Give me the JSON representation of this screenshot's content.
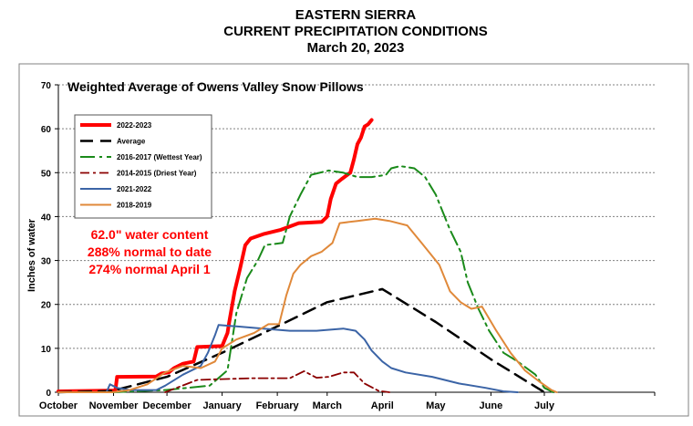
{
  "header": {
    "line1": "EASTERN SIERRA",
    "line2": "CURRENT PRECIPITATION CONDITIONS",
    "line3": "March 20, 2023"
  },
  "annotation": {
    "line1": "62.0\" water content",
    "line2": "288% normal to date",
    "line3": "274% normal April 1"
  },
  "chart_data": {
    "type": "line",
    "title": "Weighted Average of Owens Valley Snow Pillows",
    "ylabel": "Inches of water",
    "xlabel": "",
    "ylim": [
      0,
      70
    ],
    "yticks": [
      0,
      10,
      20,
      30,
      40,
      50,
      60,
      70
    ],
    "xlim": [
      0,
      335
    ],
    "x_units": "days since Oct 1",
    "month_ticks": [
      {
        "label": "October",
        "x": 0
      },
      {
        "label": "November",
        "x": 31
      },
      {
        "label": "December",
        "x": 61
      },
      {
        "label": "January",
        "x": 92
      },
      {
        "label": "February",
        "x": 123
      },
      {
        "label": "March",
        "x": 151
      },
      {
        "label": "April",
        "x": 182
      },
      {
        "label": "May",
        "x": 212
      },
      {
        "label": "June",
        "x": 243
      },
      {
        "label": "July",
        "x": 273
      }
    ],
    "grid": true,
    "legend_position": "top-left",
    "series": [
      {
        "name": "2022-2023",
        "color": "#ff0000",
        "dash": "",
        "width": 4,
        "points": [
          [
            0,
            0.2
          ],
          [
            32,
            0.4
          ],
          [
            33,
            3.5
          ],
          [
            55,
            3.6
          ],
          [
            58,
            4.3
          ],
          [
            62,
            4.5
          ],
          [
            65,
            5.5
          ],
          [
            70,
            6.5
          ],
          [
            76,
            7.0
          ],
          [
            78,
            10.3
          ],
          [
            92,
            10.5
          ],
          [
            95,
            13.5
          ],
          [
            96,
            16
          ],
          [
            99,
            23
          ],
          [
            102,
            28
          ],
          [
            105,
            33.5
          ],
          [
            108,
            35
          ],
          [
            115,
            36
          ],
          [
            125,
            37
          ],
          [
            135,
            38.5
          ],
          [
            148,
            38.8
          ],
          [
            151,
            40
          ],
          [
            153,
            44
          ],
          [
            156,
            47.5
          ],
          [
            159,
            48.5
          ],
          [
            164,
            50
          ],
          [
            166,
            53
          ],
          [
            168,
            56.5
          ],
          [
            170,
            58
          ],
          [
            172,
            60.5
          ],
          [
            174,
            61
          ],
          [
            176,
            62
          ]
        ]
      },
      {
        "name": "Average",
        "color": "#000000",
        "dash": "14,8",
        "width": 2.5,
        "points": [
          [
            0,
            0
          ],
          [
            30,
            0.3
          ],
          [
            61,
            3.5
          ],
          [
            92,
            9
          ],
          [
            123,
            15
          ],
          [
            151,
            20.5
          ],
          [
            182,
            23.5
          ],
          [
            212,
            16
          ],
          [
            243,
            7.5
          ],
          [
            273,
            0
          ]
        ]
      },
      {
        "name": "2016-2017 (Wettest Year)",
        "color": "#1a8a1a",
        "dash": "16,5,3,5",
        "width": 2,
        "points": [
          [
            0,
            0
          ],
          [
            30,
            0
          ],
          [
            60,
            0.5
          ],
          [
            85,
            1.5
          ],
          [
            95,
            5
          ],
          [
            100,
            18
          ],
          [
            106,
            26
          ],
          [
            112,
            30
          ],
          [
            116,
            33.5
          ],
          [
            126,
            34
          ],
          [
            130,
            40
          ],
          [
            136,
            45
          ],
          [
            142,
            49.5
          ],
          [
            152,
            50.5
          ],
          [
            160,
            50
          ],
          [
            168,
            49
          ],
          [
            176,
            49
          ],
          [
            184,
            49.5
          ],
          [
            187,
            51
          ],
          [
            192,
            51.5
          ],
          [
            200,
            51
          ],
          [
            206,
            49
          ],
          [
            212,
            45
          ],
          [
            220,
            37
          ],
          [
            226,
            32
          ],
          [
            230,
            25
          ],
          [
            236,
            19
          ],
          [
            242,
            14
          ],
          [
            250,
            9
          ],
          [
            258,
            7
          ],
          [
            268,
            4
          ],
          [
            273,
            1
          ],
          [
            278,
            0
          ]
        ]
      },
      {
        "name": "2014-2015 (Driest Year)",
        "color": "#8b0000",
        "dash": "10,4,3,4",
        "width": 1.8,
        "points": [
          [
            60,
            0
          ],
          [
            78,
            2.8
          ],
          [
            92,
            3
          ],
          [
            110,
            3.2
          ],
          [
            130,
            3.2
          ],
          [
            138,
            4.8
          ],
          [
            145,
            3.3
          ],
          [
            152,
            3.5
          ],
          [
            160,
            4.5
          ],
          [
            166,
            4.5
          ],
          [
            172,
            2
          ],
          [
            180,
            0.3
          ],
          [
            186,
            0
          ]
        ]
      },
      {
        "name": "2021-2022",
        "color": "#3b64a6",
        "dash": "",
        "width": 2,
        "points": [
          [
            0,
            0
          ],
          [
            27,
            0
          ],
          [
            29,
            1.8
          ],
          [
            33,
            1
          ],
          [
            40,
            0.5
          ],
          [
            55,
            0.5
          ],
          [
            60,
            1.5
          ],
          [
            70,
            4
          ],
          [
            80,
            6
          ],
          [
            84,
            9
          ],
          [
            88,
            13
          ],
          [
            90,
            15.3
          ],
          [
            100,
            15
          ],
          [
            115,
            14.5
          ],
          [
            130,
            14
          ],
          [
            145,
            14
          ],
          [
            160,
            14.5
          ],
          [
            167,
            14
          ],
          [
            172,
            12
          ],
          [
            176,
            9.5
          ],
          [
            182,
            7
          ],
          [
            187,
            5.5
          ],
          [
            195,
            4.5
          ],
          [
            210,
            3.5
          ],
          [
            225,
            2
          ],
          [
            240,
            1
          ],
          [
            250,
            0.2
          ],
          [
            258,
            0
          ]
        ]
      },
      {
        "name": "2018-2019",
        "color": "#e0893a",
        "dash": "",
        "width": 2,
        "points": [
          [
            0,
            0
          ],
          [
            30,
            0
          ],
          [
            40,
            0.5
          ],
          [
            50,
            1.8
          ],
          [
            60,
            4.5
          ],
          [
            70,
            6
          ],
          [
            80,
            5.5
          ],
          [
            88,
            7
          ],
          [
            92,
            10
          ],
          [
            100,
            12
          ],
          [
            110,
            13.5
          ],
          [
            118,
            15.5
          ],
          [
            124,
            15.5
          ],
          [
            128,
            22
          ],
          [
            132,
            27
          ],
          [
            136,
            29
          ],
          [
            142,
            31
          ],
          [
            148,
            32
          ],
          [
            154,
            34
          ],
          [
            158,
            38.5
          ],
          [
            168,
            39
          ],
          [
            178,
            39.5
          ],
          [
            186,
            39
          ],
          [
            196,
            38
          ],
          [
            204,
            34
          ],
          [
            214,
            29
          ],
          [
            220,
            23
          ],
          [
            226,
            20.5
          ],
          [
            232,
            19
          ],
          [
            238,
            19.5
          ],
          [
            246,
            14
          ],
          [
            254,
            9
          ],
          [
            262,
            5
          ],
          [
            270,
            2.5
          ],
          [
            277,
            0.5
          ],
          [
            280,
            0
          ]
        ]
      }
    ]
  }
}
